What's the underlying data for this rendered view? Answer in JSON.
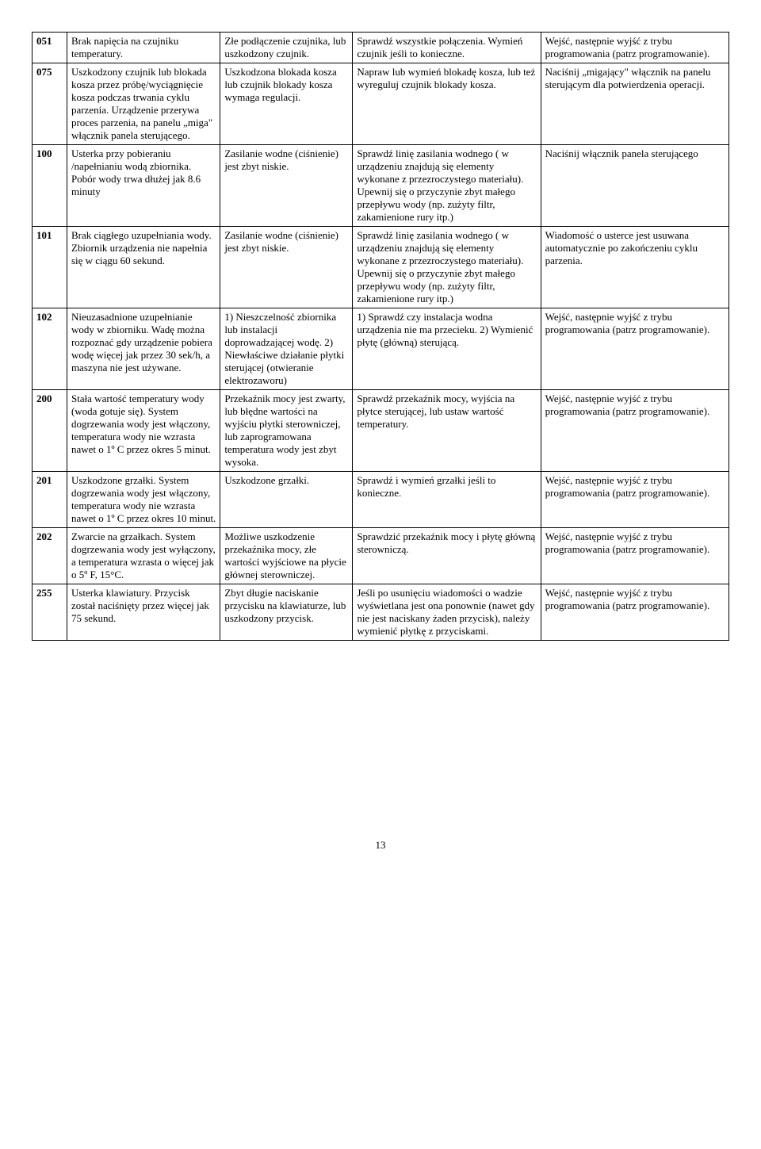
{
  "page_number": "13",
  "rows": [
    {
      "code": "051",
      "desc": "Brak napięcia na czujniku temperatury.",
      "cause": "Złe podłączenie czujnika, lub uszkodzony czujnik.",
      "check": "Sprawdź wszystkie połączenia. Wymień czujnik jeśli to konieczne.",
      "action": "Wejść, następnie wyjść z trybu programowania (patrz programowanie)."
    },
    {
      "code": "075",
      "desc": "Uszkodzony czujnik lub blokada kosza przez próbę/wyciągnięcie kosza podczas trwania cyklu parzenia. Urządzenie przerywa proces parzenia, na panelu „miga\" włącznik panela sterującego.",
      "cause": "Uszkodzona blokada kosza lub czujnik blokady kosza wymaga regulacji.",
      "check": "Napraw lub wymień blokadę kosza, lub też wyreguluj czujnik blokady kosza.",
      "action": "Naciśnij „migający\" włącznik na panelu sterującym dla potwierdzenia operacji."
    },
    {
      "code": "100",
      "desc": "Usterka przy pobieraniu /napełnianiu wodą zbiornika. Pobór wody trwa dłużej jak 8.6 minuty",
      "cause": "Zasilanie wodne (ciśnienie) jest zbyt niskie.",
      "check": "Sprawdź linię zasilania wodnego ( w urządzeniu znajdują się elementy wykonane z przezroczystego materiału). Upewnij się o przyczynie zbyt małego przepływu wody (np. zużyty filtr, zakamienione rury itp.)",
      "action": "Naciśnij włącznik panela sterującego"
    },
    {
      "code": "101",
      "desc": "Brak ciągłego uzupełniania wody. Zbiornik urządzenia nie napełnia się w ciągu 60 sekund.",
      "cause": "Zasilanie wodne (ciśnienie) jest zbyt niskie.",
      "check": "Sprawdź linię zasilania wodnego ( w urządzeniu znajdują się elementy wykonane z przezroczystego materiału). Upewnij się o przyczynie zbyt małego przepływu wody (np. zużyty filtr, zakamienione rury itp.)",
      "action": "Wiadomość o usterce jest usuwana automatycznie po zakończeniu cyklu parzenia."
    },
    {
      "code": "102",
      "desc": "Nieuzasadnione uzupełnianie wody w zbiorniku. Wadę można rozpoznać gdy urządzenie pobiera wodę więcej jak przez 30 sek/h, a maszyna nie jest używane.",
      "cause": "1) Nieszczelność zbiornika lub instalacji doprowadzającej wodę. 2) Niewłaściwe działanie płytki sterującej (otwieranie elektrozaworu)",
      "check": "1) Sprawdź czy instalacja wodna urządzenia nie ma przecieku. 2) Wymienić płytę (główną) sterującą.",
      "action": "Wejść, następnie wyjść z trybu programowania (patrz programowanie)."
    },
    {
      "code": "200",
      "desc": "Stała wartość temperatury wody (woda gotuje się). System dogrzewania wody jest włączony, temperatura wody nie wzrasta nawet o 1º C przez okres 5 minut.",
      "cause": "Przekaźnik mocy jest zwarty, lub błędne wartości na wyjściu płytki sterowniczej, lub zaprogramowana temperatura wody jest zbyt wysoka.",
      "check": "Sprawdź przekaźnik mocy, wyjścia na płytce sterującej, lub ustaw wartość temperatury.",
      "action": "Wejść, następnie wyjść z trybu programowania (patrz programowanie)."
    },
    {
      "code": "201",
      "desc": "Uszkodzone grzałki. System dogrzewania wody jest włączony, temperatura wody nie wzrasta nawet o 1º C przez okres 10 minut.",
      "cause": "Uszkodzone grzałki.",
      "check": "Sprawdź i wymień grzałki jeśli to konieczne.",
      "action": "Wejść, następnie wyjść z trybu programowania (patrz programowanie)."
    },
    {
      "code": "202",
      "desc": "Zwarcie na grzałkach. System dogrzewania wody jest wyłączony, a temperatura wzrasta o więcej jak o 5º F, 15°C.",
      "cause": "Możliwe uszkodzenie przekaźnika mocy, złe wartości wyjściowe na płycie głównej sterowniczej.",
      "check": "Sprawdzić przekaźnik mocy i płytę główną sterowniczą.",
      "action": "Wejść, następnie wyjść z trybu programowania (patrz programowanie)."
    },
    {
      "code": "255",
      "desc": "Usterka klawiatury. Przycisk został naciśnięty przez więcej  jak 75 sekund.",
      "cause": "Zbyt długie naciskanie przycisku na klawiaturze, lub uszkodzony przycisk.",
      "check": "Jeśli po usunięciu wiadomości o wadzie wyświetlana jest ona ponownie (nawet gdy  nie jest naciskany żaden przycisk), należy wymienić płytkę z przyciskami.",
      "action": "Wejść, następnie wyjść z trybu programowania (patrz programowanie)."
    }
  ]
}
